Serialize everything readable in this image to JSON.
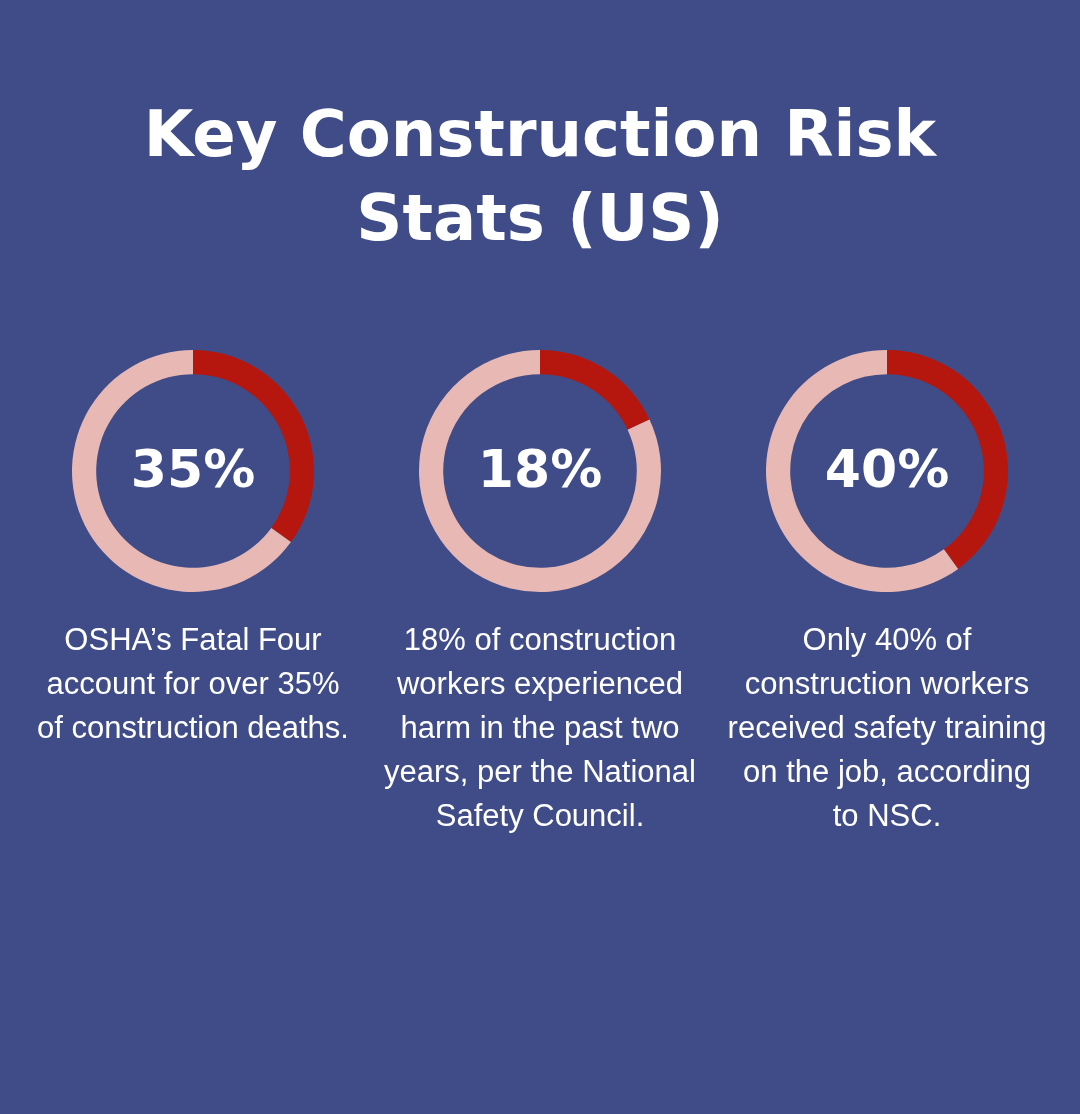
{
  "chart_data": [
    {
      "type": "donut",
      "title": "Key Construction Risk Stats (US)",
      "categories": [
        null,
        null
      ],
      "values": [
        35,
        65
      ],
      "colors": [
        "#b5170e",
        "#e8b9b4"
      ],
      "value_labels": [
        "35%",
        null
      ],
      "legend": false,
      "annotations": [
        "OSHA’s Fatal Four account for over 35% of construction deaths."
      ]
    },
    {
      "type": "donut",
      "categories": [
        null,
        null
      ],
      "values": [
        18,
        82
      ],
      "colors": [
        "#b5170e",
        "#e8b9b4"
      ],
      "value_labels": [
        "18%",
        null
      ],
      "legend": false,
      "annotations": [
        "18% of construction workers experienced harm in the past two years, per the National Safety Council."
      ]
    },
    {
      "type": "donut",
      "categories": [
        null,
        null
      ],
      "values": [
        40,
        60
      ],
      "colors": [
        "#b5170e",
        "#e8b9b4"
      ],
      "value_labels": [
        "40%",
        null
      ],
      "legend": false,
      "annotations": [
        "Only 40% of construction workers received safety training on the job, according to NSC."
      ]
    }
  ]
}
